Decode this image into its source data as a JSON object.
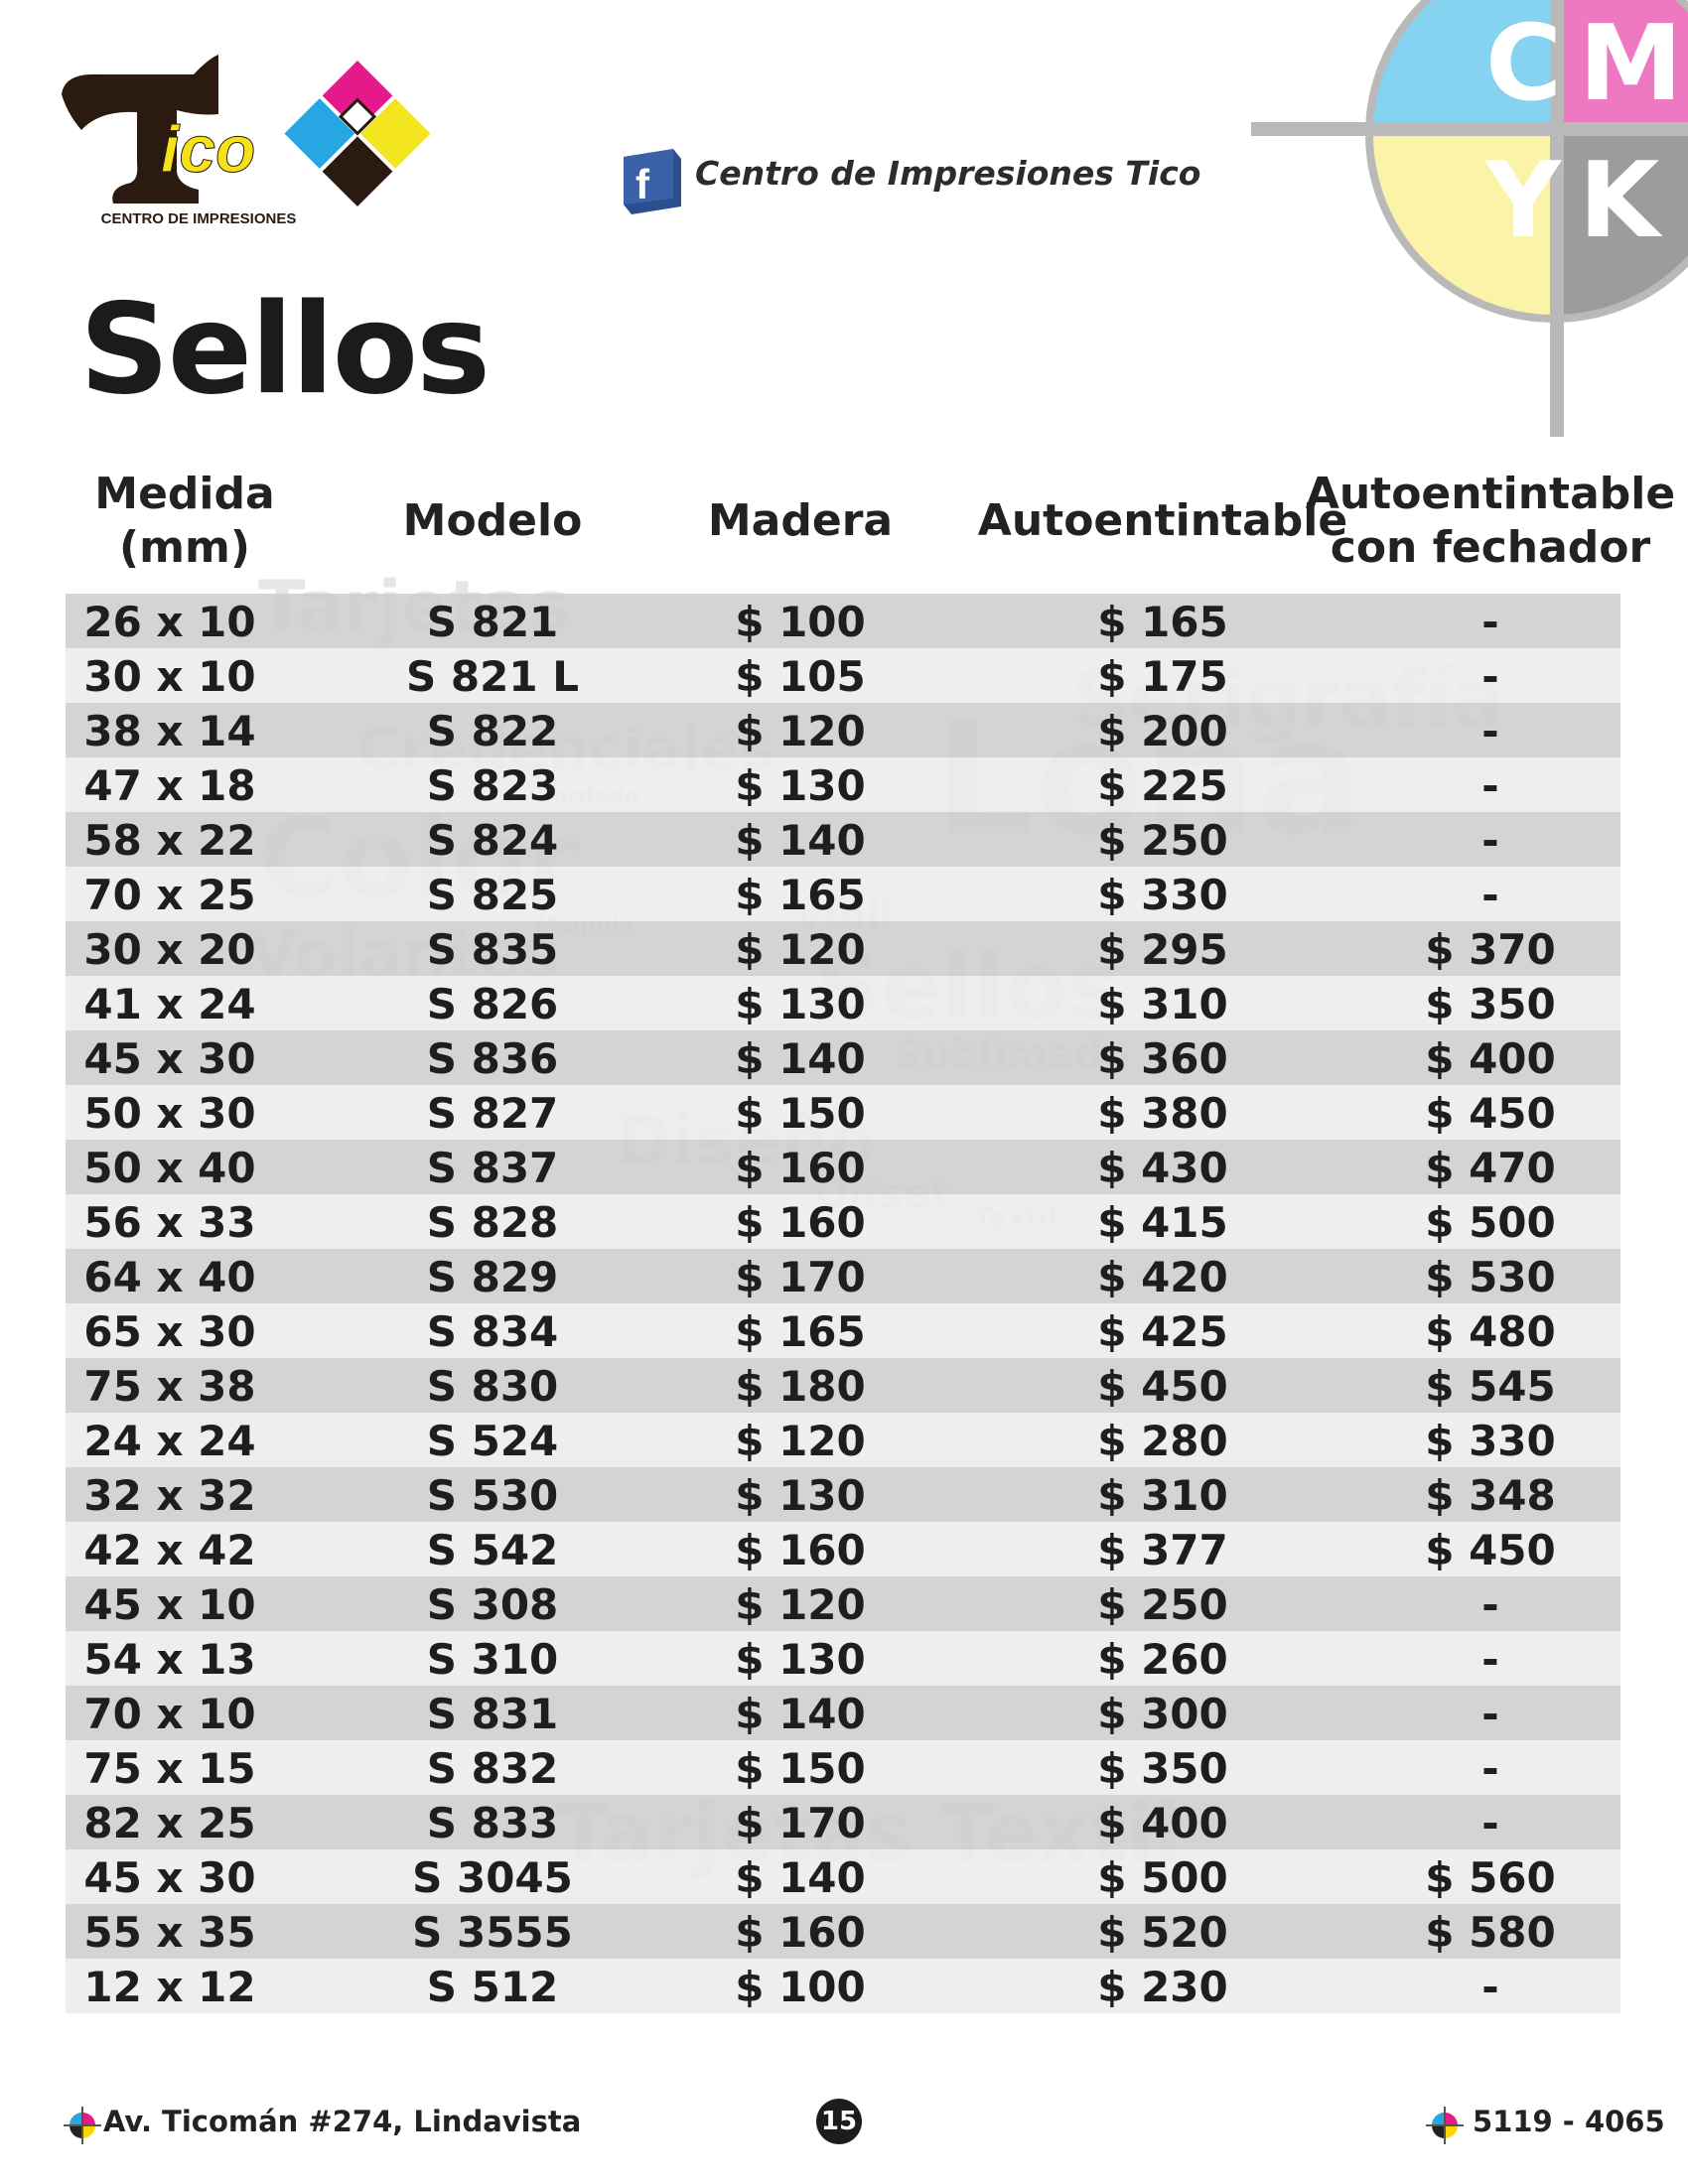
{
  "brand": {
    "logo_letter": "T",
    "logo_word": "ico",
    "logo_tagline": "CENTRO DE IMPRESIONES",
    "facebook_text": "Centro de Impresiones Tico",
    "cmyk_letters": [
      "C",
      "M",
      "Y",
      "K"
    ],
    "colors": {
      "cyan": "#79cdef",
      "magenta": "#ec6fbd",
      "yellow": "#fbf4a6",
      "key": "#9a9a9a",
      "brown": "#2a1a10"
    }
  },
  "page_title": "Sellos",
  "table": {
    "headers": {
      "medida": "Medida (mm)",
      "modelo": "Modelo",
      "madera": "Madera",
      "autoentintable": "Autoentintable",
      "fechador": "Autoentintable con fechador"
    },
    "rows": [
      {
        "medida": "26 x 10",
        "modelo": "S 821",
        "madera": "$ 100",
        "auto": "$ 165",
        "fechador": "-"
      },
      {
        "medida": "30 x 10",
        "modelo": "S 821 L",
        "madera": "$ 105",
        "auto": "$ 175",
        "fechador": "-"
      },
      {
        "medida": "38 x 14",
        "modelo": "S 822",
        "madera": "$ 120",
        "auto": "$ 200",
        "fechador": "-"
      },
      {
        "medida": "47 x 18",
        "modelo": "S 823",
        "madera": "$ 130",
        "auto": "$ 225",
        "fechador": "-"
      },
      {
        "medida": "58 x 22",
        "modelo": "S 824",
        "madera": "$ 140",
        "auto": "$ 250",
        "fechador": "-"
      },
      {
        "medida": "70 x 25",
        "modelo": "S 825",
        "madera": "$ 165",
        "auto": "$ 330",
        "fechador": "-"
      },
      {
        "medida": "30 x 20",
        "modelo": "S 835",
        "madera": "$ 120",
        "auto": "$ 295",
        "fechador": "$ 370"
      },
      {
        "medida": "41 x 24",
        "modelo": "S 826",
        "madera": "$ 130",
        "auto": "$ 310",
        "fechador": "$ 350"
      },
      {
        "medida": "45 x 30",
        "modelo": "S 836",
        "madera": "$ 140",
        "auto": "$ 360",
        "fechador": "$ 400"
      },
      {
        "medida": "50 x 30",
        "modelo": "S 827",
        "madera": "$ 150",
        "auto": "$ 380",
        "fechador": "$ 450"
      },
      {
        "medida": "50 x 40",
        "modelo": "S 837",
        "madera": "$ 160",
        "auto": "$ 430",
        "fechador": "$ 470"
      },
      {
        "medida": "56 x 33",
        "modelo": "S 828",
        "madera": "$ 160",
        "auto": "$ 415",
        "fechador": "$ 500"
      },
      {
        "medida": "64 x 40",
        "modelo": "S 829",
        "madera": "$ 170",
        "auto": "$ 420",
        "fechador": "$ 530"
      },
      {
        "medida": "65 x 30",
        "modelo": "S 834",
        "madera": "$ 165",
        "auto": "$ 425",
        "fechador": "$ 480"
      },
      {
        "medida": "75 x 38",
        "modelo": "S 830",
        "madera": "$ 180",
        "auto": "$ 450",
        "fechador": "$ 545"
      },
      {
        "medida": "24 x 24",
        "modelo": "S 524",
        "madera": "$ 120",
        "auto": "$ 280",
        "fechador": "$ 330"
      },
      {
        "medida": "32 x 32",
        "modelo": "S 530",
        "madera": "$ 130",
        "auto": "$ 310",
        "fechador": "$ 348"
      },
      {
        "medida": "42 x 42",
        "modelo": "S 542",
        "madera": "$ 160",
        "auto": "$ 377",
        "fechador": "$ 450"
      },
      {
        "medida": "45 x 10",
        "modelo": "S 308",
        "madera": "$ 120",
        "auto": "$ 250",
        "fechador": "-"
      },
      {
        "medida": "54 x 13",
        "modelo": "S 310",
        "madera": "$ 130",
        "auto": "$ 260",
        "fechador": "-"
      },
      {
        "medida": "70 x 10",
        "modelo": "S 831",
        "madera": "$ 140",
        "auto": "$ 300",
        "fechador": "-"
      },
      {
        "medida": "75 x 15",
        "modelo": "S 832",
        "madera": "$ 150",
        "auto": "$ 350",
        "fechador": "-"
      },
      {
        "medida": "82 x 25",
        "modelo": "S 833",
        "madera": "$ 170",
        "auto": "$ 400",
        "fechador": "-"
      },
      {
        "medida": "45 x 30",
        "modelo": "S 3045",
        "madera": "$ 140",
        "auto": "$ 500",
        "fechador": "$ 560"
      },
      {
        "medida": "55 x 35",
        "modelo": "S 3555",
        "madera": "$ 160",
        "auto": "$ 520",
        "fechador": "$ 580"
      },
      {
        "medida": "12 x 12",
        "modelo": "S 512",
        "madera": "$ 100",
        "auto": "$ 230",
        "fechador": "-"
      }
    ]
  },
  "watermark_words": [
    "Tarjetas",
    "Credenciales",
    "Color",
    "Volantes",
    "Serigrafía",
    "Lona",
    "Sellos",
    "Diseño",
    "Sublimado",
    "Offset",
    "Textil",
    "Vinil",
    "Maquila",
    "Bordado",
    "Tarjetas Textil"
  ],
  "footer": {
    "address": "Av. Ticomán #274, Lindavista",
    "page_number": "15",
    "phone": "5119 - 4065"
  }
}
